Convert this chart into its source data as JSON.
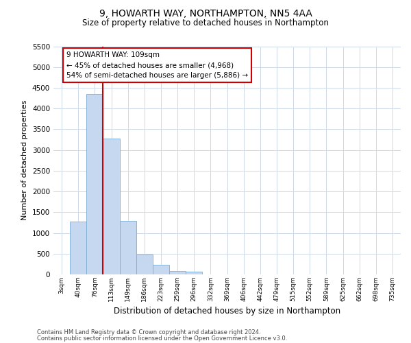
{
  "title_line1": "9, HOWARTH WAY, NORTHAMPTON, NN5 4AA",
  "title_line2": "Size of property relative to detached houses in Northampton",
  "xlabel": "Distribution of detached houses by size in Northampton",
  "ylabel": "Number of detached properties",
  "footer_line1": "Contains HM Land Registry data © Crown copyright and database right 2024.",
  "footer_line2": "Contains public sector information licensed under the Open Government Licence v3.0.",
  "bin_labels": [
    "3sqm",
    "40sqm",
    "76sqm",
    "113sqm",
    "149sqm",
    "186sqm",
    "223sqm",
    "259sqm",
    "296sqm",
    "332sqm",
    "369sqm",
    "406sqm",
    "442sqm",
    "479sqm",
    "515sqm",
    "552sqm",
    "589sqm",
    "625sqm",
    "662sqm",
    "698sqm",
    "735sqm"
  ],
  "bar_values": [
    0,
    1270,
    4350,
    3280,
    1290,
    475,
    225,
    90,
    60,
    0,
    0,
    0,
    0,
    0,
    0,
    0,
    0,
    0,
    0,
    0,
    0
  ],
  "bar_color": "#c5d8f0",
  "bar_edge_color": "#7aadd4",
  "red_line_x": 2.5,
  "annotation_text": "9 HOWARTH WAY: 109sqm\n← 45% of detached houses are smaller (4,968)\n54% of semi-detached houses are larger (5,886) →",
  "annotation_box_color": "#ffffff",
  "annotation_box_edge": "#cc0000",
  "ylim": [
    0,
    5500
  ],
  "yticks": [
    0,
    500,
    1000,
    1500,
    2000,
    2500,
    3000,
    3500,
    4000,
    4500,
    5000,
    5500
  ],
  "bg_color": "#ffffff",
  "grid_color": "#cdd8ea"
}
